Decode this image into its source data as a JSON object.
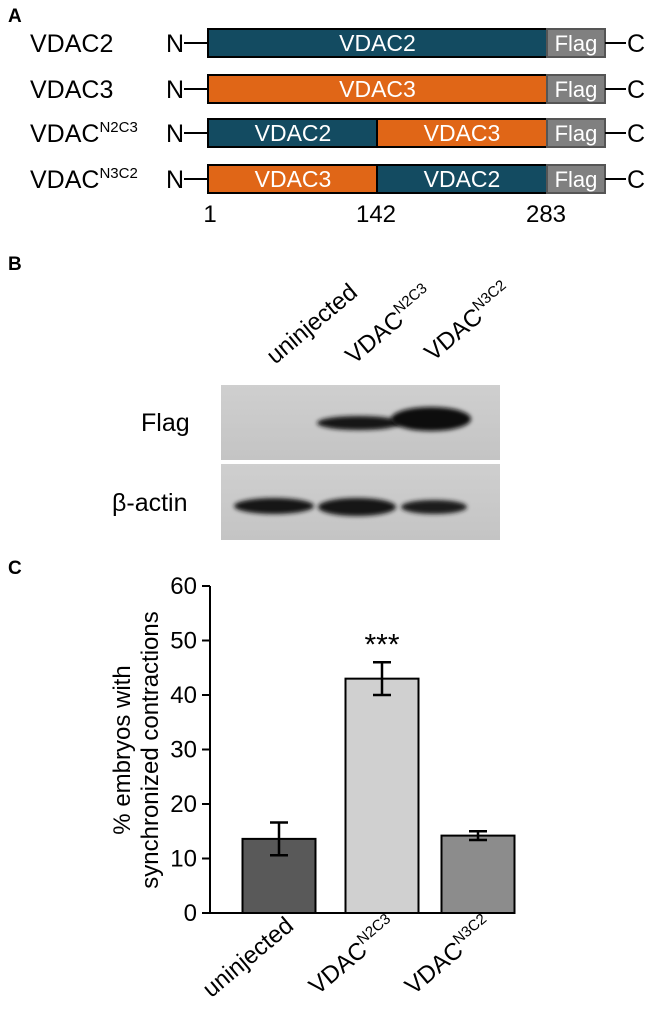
{
  "panel_a": {
    "letter": "A",
    "n_term": "N",
    "c_term": "C",
    "constructs": [
      {
        "base": "VDAC2",
        "sup": "",
        "segments": [
          {
            "label": "VDAC2",
            "color": "#134b61"
          }
        ],
        "tag": "Flag"
      },
      {
        "base": "VDAC3",
        "sup": "",
        "segments": [
          {
            "label": "VDAC3",
            "color": "#e06617"
          }
        ],
        "tag": "Flag"
      },
      {
        "base": "VDAC",
        "sup": "N2C3",
        "segments": [
          {
            "label": "VDAC2",
            "color": "#134b61"
          },
          {
            "label": "VDAC3",
            "color": "#e06617"
          }
        ],
        "tag": "Flag"
      },
      {
        "base": "VDAC",
        "sup": "N3C2",
        "segments": [
          {
            "label": "VDAC3",
            "color": "#e06617"
          },
          {
            "label": "VDAC2",
            "color": "#134b61"
          }
        ],
        "tag": "Flag"
      }
    ],
    "positions": [
      "1",
      "142",
      "283"
    ],
    "tag_color": "#808080"
  },
  "panel_b": {
    "letter": "B",
    "lanes": [
      {
        "base": "uninjected",
        "sup": ""
      },
      {
        "base": "VDAC",
        "sup": "N2C3"
      },
      {
        "base": "VDAC",
        "sup": "N3C2"
      }
    ],
    "blots": [
      "Flag",
      "β-actin"
    ]
  },
  "panel_c": {
    "letter": "C",
    "significance": "***"
  },
  "chart_data": {
    "type": "bar",
    "categories": [
      "uninjected",
      "VDACN2C3",
      "VDACN3C2"
    ],
    "category_display": [
      {
        "base": "uninjected",
        "sup": ""
      },
      {
        "base": "VDAC",
        "sup": "N2C3"
      },
      {
        "base": "VDAC",
        "sup": "N3C2"
      }
    ],
    "values": [
      13.6,
      43.0,
      14.2
    ],
    "errors": [
      3.0,
      3.0,
      0.8
    ],
    "bar_colors": [
      "#595959",
      "#d0d0d0",
      "#8c8c8c"
    ],
    "ylabel_lines": [
      "% embryos with",
      "synchronized contractions"
    ],
    "xlabel": "",
    "ylim": [
      0,
      60
    ],
    "yticks": [
      0,
      10,
      20,
      30,
      40,
      50,
      60
    ],
    "annotation": "***",
    "grid": false
  }
}
